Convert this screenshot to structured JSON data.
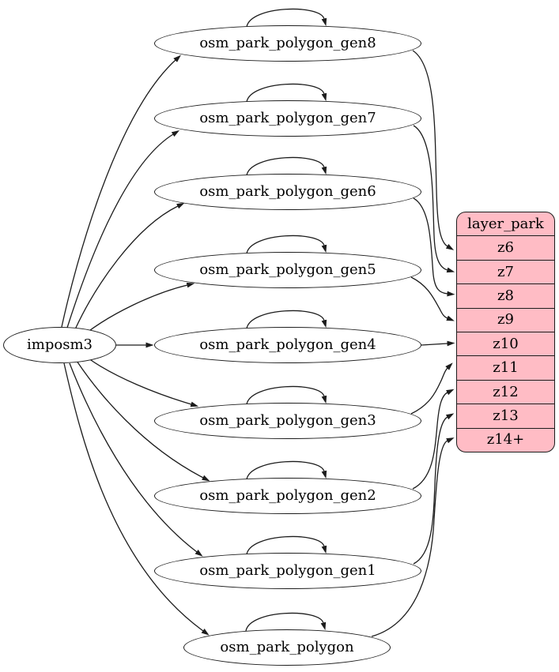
{
  "nodes": [
    {
      "id": "imposm3",
      "label": "imposm3"
    },
    {
      "id": "osm_park_polygon_gen8",
      "label": "osm_park_polygon_gen8"
    },
    {
      "id": "osm_park_polygon_gen7",
      "label": "osm_park_polygon_gen7"
    },
    {
      "id": "osm_park_polygon_gen6",
      "label": "osm_park_polygon_gen6"
    },
    {
      "id": "osm_park_polygon_gen5",
      "label": "osm_park_polygon_gen5"
    },
    {
      "id": "osm_park_polygon_gen4",
      "label": "osm_park_polygon_gen4"
    },
    {
      "id": "osm_park_polygon_gen3",
      "label": "osm_park_polygon_gen3"
    },
    {
      "id": "osm_park_polygon_gen2",
      "label": "osm_park_polygon_gen2"
    },
    {
      "id": "osm_park_polygon_gen1",
      "label": "osm_park_polygon_gen1"
    },
    {
      "id": "osm_park_polygon",
      "label": "osm_park_polygon"
    }
  ],
  "table": {
    "title": "layer_park",
    "rows": [
      "z6",
      "z7",
      "z8",
      "z9",
      "z10",
      "z11",
      "z12",
      "z13",
      "z14+"
    ],
    "fill": "#ffbcc5"
  },
  "colors": {
    "line": "#1c1c1c",
    "text": "#000000",
    "node_fill": "#ffffff",
    "background": "#ffffff"
  },
  "edges": [
    {
      "from": "imposm3",
      "to": "osm_park_polygon_gen8"
    },
    {
      "from": "imposm3",
      "to": "osm_park_polygon_gen7"
    },
    {
      "from": "imposm3",
      "to": "osm_park_polygon_gen6"
    },
    {
      "from": "imposm3",
      "to": "osm_park_polygon_gen5"
    },
    {
      "from": "imposm3",
      "to": "osm_park_polygon_gen4"
    },
    {
      "from": "imposm3",
      "to": "osm_park_polygon_gen3"
    },
    {
      "from": "imposm3",
      "to": "osm_park_polygon_gen2"
    },
    {
      "from": "imposm3",
      "to": "osm_park_polygon_gen1"
    },
    {
      "from": "imposm3",
      "to": "osm_park_polygon"
    },
    {
      "from": "osm_park_polygon_gen8",
      "to": "osm_park_polygon_gen8"
    },
    {
      "from": "osm_park_polygon_gen7",
      "to": "osm_park_polygon_gen7"
    },
    {
      "from": "osm_park_polygon_gen6",
      "to": "osm_park_polygon_gen6"
    },
    {
      "from": "osm_park_polygon_gen5",
      "to": "osm_park_polygon_gen5"
    },
    {
      "from": "osm_park_polygon_gen4",
      "to": "osm_park_polygon_gen4"
    },
    {
      "from": "osm_park_polygon_gen3",
      "to": "osm_park_polygon_gen3"
    },
    {
      "from": "osm_park_polygon_gen2",
      "to": "osm_park_polygon_gen2"
    },
    {
      "from": "osm_park_polygon_gen1",
      "to": "osm_park_polygon_gen1"
    },
    {
      "from": "osm_park_polygon",
      "to": "osm_park_polygon"
    },
    {
      "from": "osm_park_polygon_gen8",
      "to": "z6"
    },
    {
      "from": "osm_park_polygon_gen7",
      "to": "z7"
    },
    {
      "from": "osm_park_polygon_gen6",
      "to": "z8"
    },
    {
      "from": "osm_park_polygon_gen5",
      "to": "z9"
    },
    {
      "from": "osm_park_polygon_gen4",
      "to": "z10"
    },
    {
      "from": "osm_park_polygon_gen3",
      "to": "z11"
    },
    {
      "from": "osm_park_polygon_gen2",
      "to": "z12"
    },
    {
      "from": "osm_park_polygon_gen1",
      "to": "z13"
    },
    {
      "from": "osm_park_polygon",
      "to": "z14+"
    }
  ]
}
